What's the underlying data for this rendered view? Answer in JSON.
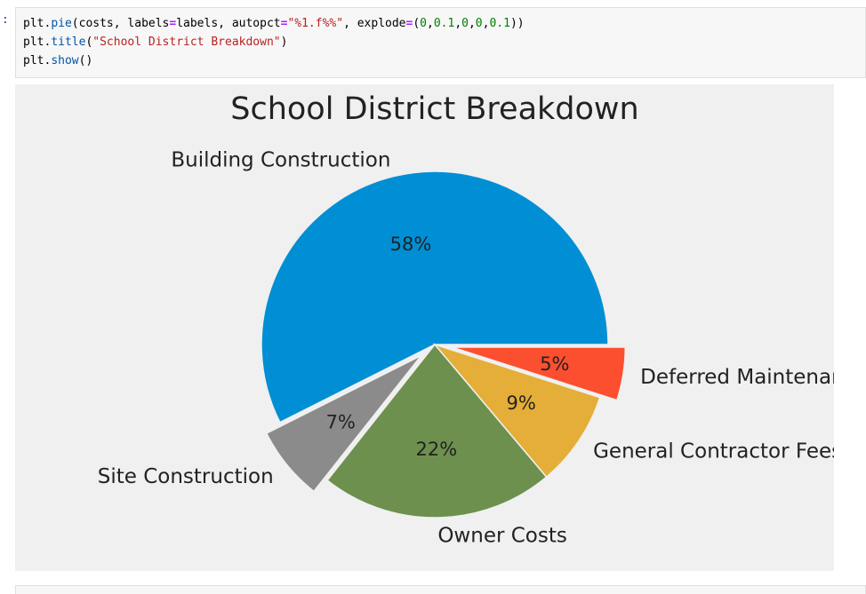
{
  "cell": {
    "prompt": ":",
    "line1": {
      "a": "plt.",
      "fn": "pie",
      "b": "(costs, labels",
      "eq1": "=",
      "c": "labels, autopct",
      "eq2": "=",
      "s": "\"%1.f%%\"",
      "d": ", explode",
      "eq3": "=",
      "e": "(",
      "n1": "0",
      "c1": ",",
      "n2": "0.1",
      "c2": ",",
      "n3": "0",
      "c3": ",",
      "n4": "0",
      "c4": ",",
      "n5": "0.1",
      "f": "))"
    },
    "line2": {
      "a": "plt.",
      "fn": "title",
      "b": "(",
      "s": "\"School District Breakdown\"",
      "c": ")"
    },
    "line3": {
      "a": "plt.",
      "fn": "show",
      "b": "()"
    }
  },
  "chart_data": {
    "type": "pie",
    "title": "School District Breakdown",
    "slices": [
      {
        "label": "Building Construction",
        "value": 58,
        "pct_label": "58%",
        "color": "#008fd5",
        "explode": 0
      },
      {
        "label": "Site Construction",
        "value": 7,
        "pct_label": "7%",
        "color": "#8b8b8b",
        "explode": 0.1
      },
      {
        "label": "Owner Costs",
        "value": 22,
        "pct_label": "22%",
        "color": "#6d904f",
        "explode": 0
      },
      {
        "label": "General Contractor Fees",
        "value": 9,
        "pct_label": "9%",
        "color": "#e5ae38",
        "explode": 0
      },
      {
        "label": "Deferred Maintenance",
        "value": 5,
        "pct_label": "5%",
        "color": "#fc4f30",
        "explode": 0.1
      }
    ]
  }
}
